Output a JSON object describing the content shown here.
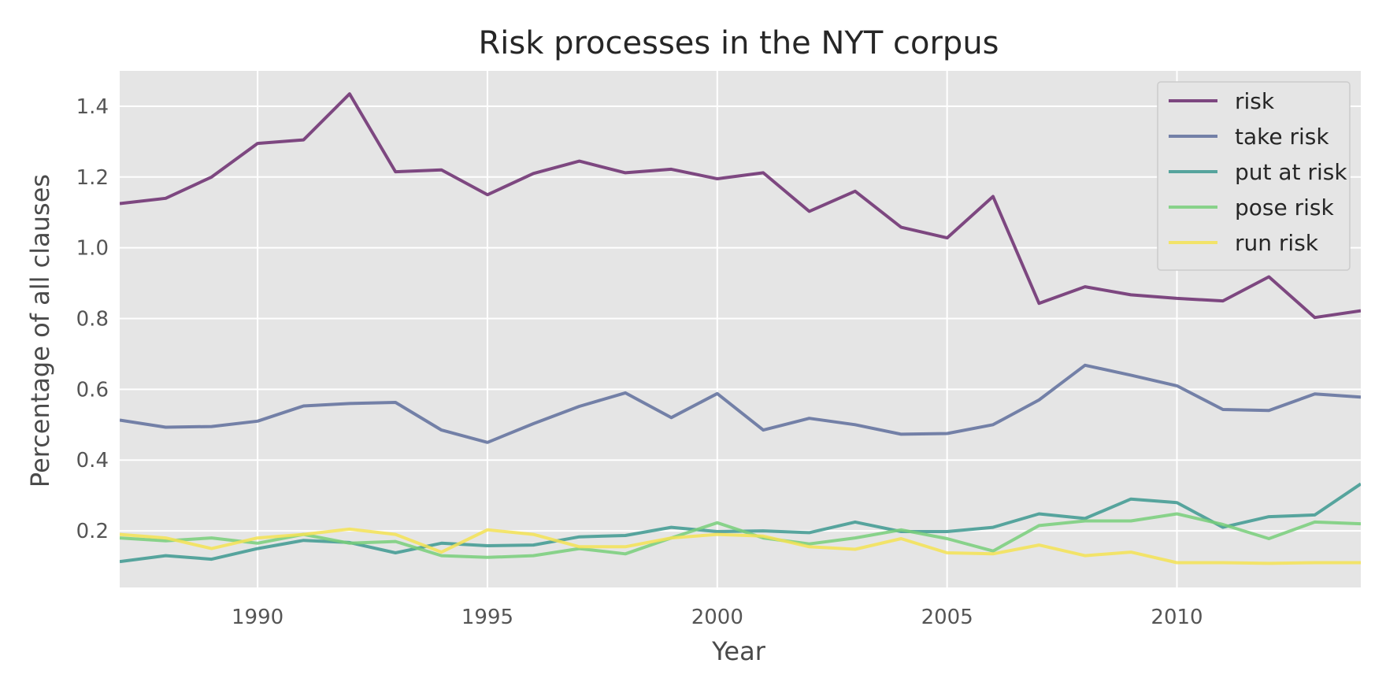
{
  "chart_data": {
    "type": "line",
    "title": "Risk processes in the NYT corpus",
    "xlabel": "Year",
    "ylabel": "Percentage of all clauses",
    "xlim": [
      1987,
      2014
    ],
    "ylim": [
      0.04,
      1.5
    ],
    "xticks": [
      1990,
      1995,
      2000,
      2005,
      2010
    ],
    "yticks": [
      0.2,
      0.4,
      0.6,
      0.8,
      1.0,
      1.2,
      1.4
    ],
    "xtick_labels": [
      "1990",
      "1995",
      "2000",
      "2005",
      "2010"
    ],
    "ytick_labels": [
      "0.2",
      "0.4",
      "0.6",
      "0.8",
      "1.0",
      "1.2",
      "1.4"
    ],
    "grid": true,
    "legend_position": "top-right",
    "x": [
      1987,
      1988,
      1989,
      1990,
      1991,
      1992,
      1993,
      1994,
      1995,
      1996,
      1997,
      1998,
      1999,
      2000,
      2001,
      2002,
      2003,
      2004,
      2005,
      2006,
      2007,
      2008,
      2009,
      2010,
      2011,
      2012,
      2013,
      2014
    ],
    "series": [
      {
        "name": "risk",
        "color": "#6b2c6e",
        "values": [
          1.125,
          1.14,
          1.2,
          1.295,
          1.305,
          1.435,
          1.215,
          1.22,
          1.15,
          1.21,
          1.245,
          1.212,
          1.222,
          1.195,
          1.212,
          1.103,
          1.16,
          1.058,
          1.028,
          1.145,
          0.843,
          0.89,
          0.867,
          0.857,
          0.85,
          0.918,
          0.803,
          0.822
        ]
      },
      {
        "name": "take risk",
        "color": "#5f6e9c",
        "values": [
          0.513,
          0.493,
          0.495,
          0.51,
          0.553,
          0.56,
          0.563,
          0.485,
          0.45,
          0.503,
          0.552,
          0.59,
          0.52,
          0.588,
          0.485,
          0.518,
          0.5,
          0.473,
          0.475,
          0.5,
          0.57,
          0.668,
          0.64,
          0.61,
          0.543,
          0.54,
          0.587,
          0.578
        ]
      },
      {
        "name": "put at risk",
        "color": "#3d9990",
        "values": [
          0.113,
          0.13,
          0.12,
          0.15,
          0.173,
          0.167,
          0.138,
          0.165,
          0.158,
          0.16,
          0.183,
          0.187,
          0.21,
          0.198,
          0.2,
          0.195,
          0.225,
          0.198,
          0.198,
          0.21,
          0.248,
          0.235,
          0.29,
          0.28,
          0.21,
          0.24,
          0.245,
          0.333
        ]
      },
      {
        "name": "pose risk",
        "color": "#78cf7a",
        "values": [
          0.18,
          0.172,
          0.18,
          0.165,
          0.19,
          0.165,
          0.17,
          0.13,
          0.125,
          0.13,
          0.15,
          0.135,
          0.18,
          0.223,
          0.18,
          0.163,
          0.18,
          0.203,
          0.178,
          0.143,
          0.215,
          0.228,
          0.228,
          0.248,
          0.218,
          0.178,
          0.225,
          0.22
        ]
      },
      {
        "name": "run risk",
        "color": "#f5e354",
        "values": [
          0.19,
          0.18,
          0.15,
          0.18,
          0.19,
          0.205,
          0.19,
          0.14,
          0.203,
          0.19,
          0.155,
          0.155,
          0.18,
          0.19,
          0.185,
          0.155,
          0.148,
          0.178,
          0.138,
          0.135,
          0.16,
          0.13,
          0.14,
          0.11,
          0.11,
          0.108,
          0.11,
          0.11
        ]
      }
    ]
  }
}
